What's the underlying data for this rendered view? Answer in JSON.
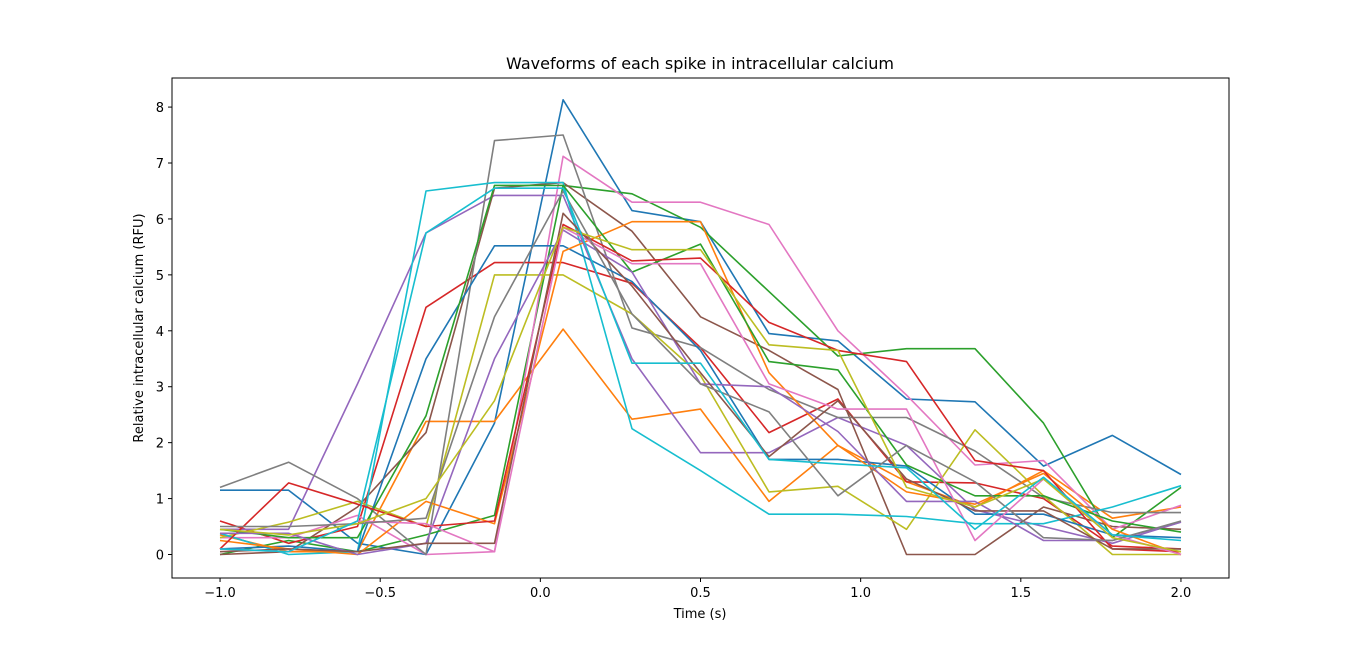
{
  "chart_data": {
    "type": "line",
    "title": "Waveforms of each spike in intracellular calcium",
    "xlabel": "Time (s)",
    "ylabel": "Relative intracellular calcium (RFU)",
    "xlim": [
      -1.15,
      2.15
    ],
    "ylim": [
      -0.42,
      8.52
    ],
    "grid": false,
    "legend": "none",
    "x_ticks": [
      -1.0,
      -0.5,
      0.0,
      0.5,
      1.0,
      1.5,
      2.0
    ],
    "x_tick_labels": [
      "−1.0",
      "−0.5",
      "0.0",
      "0.5",
      "1.0",
      "1.5",
      "2.0"
    ],
    "y_ticks": [
      0,
      1,
      2,
      3,
      4,
      5,
      6,
      7,
      8
    ],
    "y_tick_labels": [
      "0",
      "1",
      "2",
      "3",
      "4",
      "5",
      "6",
      "7",
      "8"
    ],
    "x": [
      -1.0,
      -0.786,
      -0.571,
      -0.357,
      -0.143,
      0.071,
      0.286,
      0.5,
      0.714,
      0.929,
      1.143,
      1.357,
      1.571,
      1.786,
      2.0
    ],
    "series": [
      {
        "color": "#1f77b4",
        "values": [
          1.15,
          1.15,
          0.2,
          0.0,
          2.35,
          8.13,
          6.15,
          5.95,
          3.95,
          3.82,
          2.78,
          2.73,
          1.58,
          2.13,
          1.43
        ]
      },
      {
        "color": "#ff7f0e",
        "values": [
          0.35,
          0.05,
          0.05,
          2.38,
          2.38,
          4.03,
          2.42,
          2.6,
          0.95,
          1.95,
          1.3,
          0.85,
          1.5,
          0.65,
          0.85
        ]
      },
      {
        "color": "#2ca02c",
        "values": [
          0.0,
          0.25,
          0.05,
          0.35,
          0.7,
          6.6,
          6.45,
          5.85,
          4.7,
          3.55,
          3.68,
          3.68,
          2.35,
          0.3,
          1.2
        ]
      },
      {
        "color": "#d62728",
        "values": [
          0.6,
          0.2,
          0.5,
          4.42,
          5.22,
          5.22,
          4.85,
          3.7,
          2.18,
          2.78,
          1.3,
          1.28,
          1.0,
          0.15,
          0.1
        ]
      },
      {
        "color": "#9467bd",
        "values": [
          0.45,
          0.45,
          3.05,
          5.75,
          6.42,
          6.42,
          3.5,
          1.82,
          1.82,
          2.45,
          1.95,
          0.8,
          0.5,
          0.2,
          0.58
        ]
      },
      {
        "color": "#8c564b",
        "values": [
          0.0,
          0.05,
          0.85,
          2.18,
          6.55,
          6.65,
          5.78,
          4.25,
          3.65,
          2.95,
          0.0,
          0.0,
          0.85,
          0.5,
          0.45
        ]
      },
      {
        "color": "#e377c2",
        "values": [
          0.3,
          0.3,
          0.7,
          0.0,
          0.05,
          7.12,
          6.3,
          6.3,
          5.9,
          4.0,
          2.85,
          1.6,
          1.68,
          0.45,
          0.88
        ]
      },
      {
        "color": "#7f7f7f",
        "values": [
          1.2,
          1.65,
          1.0,
          0.0,
          7.4,
          7.5,
          4.05,
          3.7,
          2.95,
          2.45,
          2.45,
          1.85,
          1.02,
          0.75,
          0.75
        ]
      },
      {
        "color": "#bcbd22",
        "values": [
          0.3,
          0.58,
          0.95,
          0.5,
          5.0,
          5.0,
          4.3,
          3.2,
          1.12,
          1.22,
          0.45,
          2.23,
          1.05,
          0.0,
          0.0
        ]
      },
      {
        "color": "#17becf",
        "values": [
          0.38,
          0.0,
          0.05,
          6.5,
          6.65,
          6.65,
          2.25,
          1.5,
          0.72,
          0.72,
          0.68,
          0.55,
          0.55,
          0.85,
          1.23
        ]
      },
      {
        "color": "#1f77b4",
        "values": [
          0.1,
          0.15,
          0.05,
          3.5,
          5.52,
          5.52,
          4.88,
          3.65,
          1.7,
          1.7,
          1.58,
          0.72,
          0.72,
          0.35,
          0.3
        ]
      },
      {
        "color": "#ff7f0e",
        "values": [
          0.25,
          0.1,
          0.0,
          0.95,
          0.55,
          5.42,
          5.95,
          5.95,
          3.25,
          1.95,
          1.12,
          0.9,
          1.45,
          0.45,
          0.0
        ]
      },
      {
        "color": "#2ca02c",
        "values": [
          0.45,
          0.3,
          0.3,
          2.48,
          6.6,
          6.6,
          5.05,
          5.55,
          3.45,
          3.3,
          1.6,
          1.05,
          1.05,
          0.6,
          0.4
        ]
      },
      {
        "color": "#d62728",
        "values": [
          0.1,
          1.28,
          0.9,
          0.5,
          0.6,
          5.9,
          5.25,
          5.3,
          4.15,
          3.65,
          3.45,
          1.68,
          1.5,
          0.1,
          0.05
        ]
      },
      {
        "color": "#9467bd",
        "values": [
          0.38,
          0.38,
          0.0,
          0.2,
          3.5,
          5.8,
          5.05,
          3.05,
          3.0,
          2.2,
          0.95,
          0.95,
          0.25,
          0.25,
          0.58
        ]
      },
      {
        "color": "#8c564b",
        "values": [
          0.05,
          0.1,
          0.05,
          0.2,
          0.2,
          6.1,
          4.8,
          3.25,
          1.75,
          2.75,
          1.35,
          0.78,
          0.78,
          0.1,
          0.1
        ]
      },
      {
        "color": "#e377c2",
        "values": [
          0.1,
          0.05,
          0.6,
          0.55,
          0.05,
          5.85,
          5.2,
          5.2,
          3.05,
          2.6,
          2.6,
          0.25,
          1.35,
          0.35,
          0.0
        ]
      },
      {
        "color": "#7f7f7f",
        "values": [
          0.5,
          0.5,
          0.55,
          0.65,
          4.25,
          6.5,
          4.3,
          3.05,
          2.55,
          1.05,
          1.95,
          1.3,
          0.3,
          0.25,
          0.6
        ]
      },
      {
        "color": "#bcbd22",
        "values": [
          0.45,
          0.35,
          0.55,
          1.0,
          2.75,
          5.85,
          5.45,
          5.45,
          3.75,
          3.65,
          1.2,
          0.85,
          1.35,
          0.3,
          0.05
        ]
      },
      {
        "color": "#17becf",
        "values": [
          0.1,
          0.05,
          0.6,
          5.75,
          6.55,
          6.55,
          3.42,
          3.42,
          1.7,
          1.62,
          1.55,
          0.45,
          1.38,
          0.35,
          0.25
        ]
      }
    ]
  }
}
